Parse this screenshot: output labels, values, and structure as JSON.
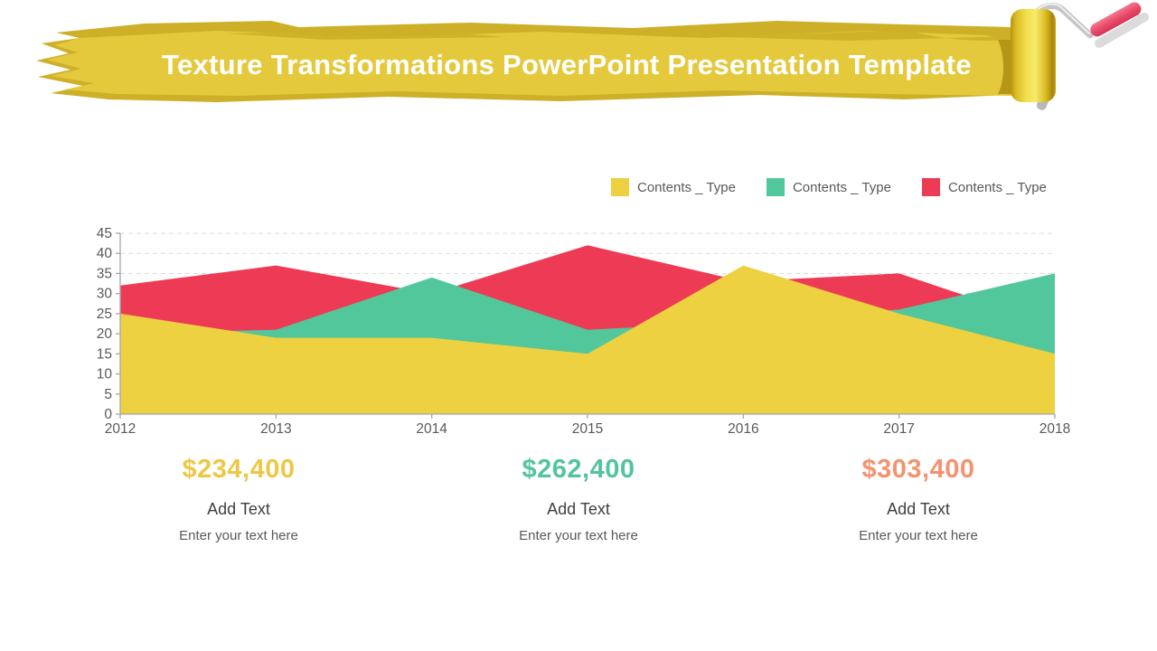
{
  "title": "Texture Transformations PowerPoint Presentation Template",
  "decor": {
    "banner_fill": "#E4C93C",
    "banner_shade": "#CDAF28",
    "roller_grip_color": "#E94D6B",
    "roller_body_color": "#EFD73E"
  },
  "chart_data": {
    "type": "area",
    "overlapping": true,
    "title": "",
    "xlabel": "",
    "ylabel": "",
    "x": [
      "2012",
      "2013",
      "2014",
      "2015",
      "2016",
      "2017",
      "2018"
    ],
    "series": [
      {
        "name": "Contents _ Type",
        "color": "#EDD140",
        "z": "front",
        "values": [
          25,
          19,
          19,
          15,
          37,
          25,
          15
        ]
      },
      {
        "name": "Contents _ Type",
        "color": "#52C79B",
        "z": "middle",
        "values": [
          20,
          21,
          34,
          21,
          23,
          26,
          35
        ]
      },
      {
        "name": "Contents _ Type",
        "color": "#EE3B55",
        "z": "back",
        "values": [
          32,
          37,
          30,
          42,
          33,
          35,
          22
        ]
      }
    ],
    "ylim": [
      0,
      45
    ],
    "ytick_step": 5,
    "grid": "horizontal-dashed",
    "legend_position": "top-right",
    "axis_color": "#A6A6A6",
    "grid_color": "#DBDBDB",
    "tick_label_color": "#595959"
  },
  "stats": [
    {
      "value": "$234,400",
      "color": "#EDC845",
      "label": "Add Text",
      "sublabel": "Enter your text here"
    },
    {
      "value": "$262,400",
      "color": "#53C3A0",
      "label": "Add Text",
      "sublabel": "Enter your text here"
    },
    {
      "value": "$303,400",
      "color": "#F3936F",
      "label": "Add Text",
      "sublabel": "Enter your text here"
    }
  ]
}
